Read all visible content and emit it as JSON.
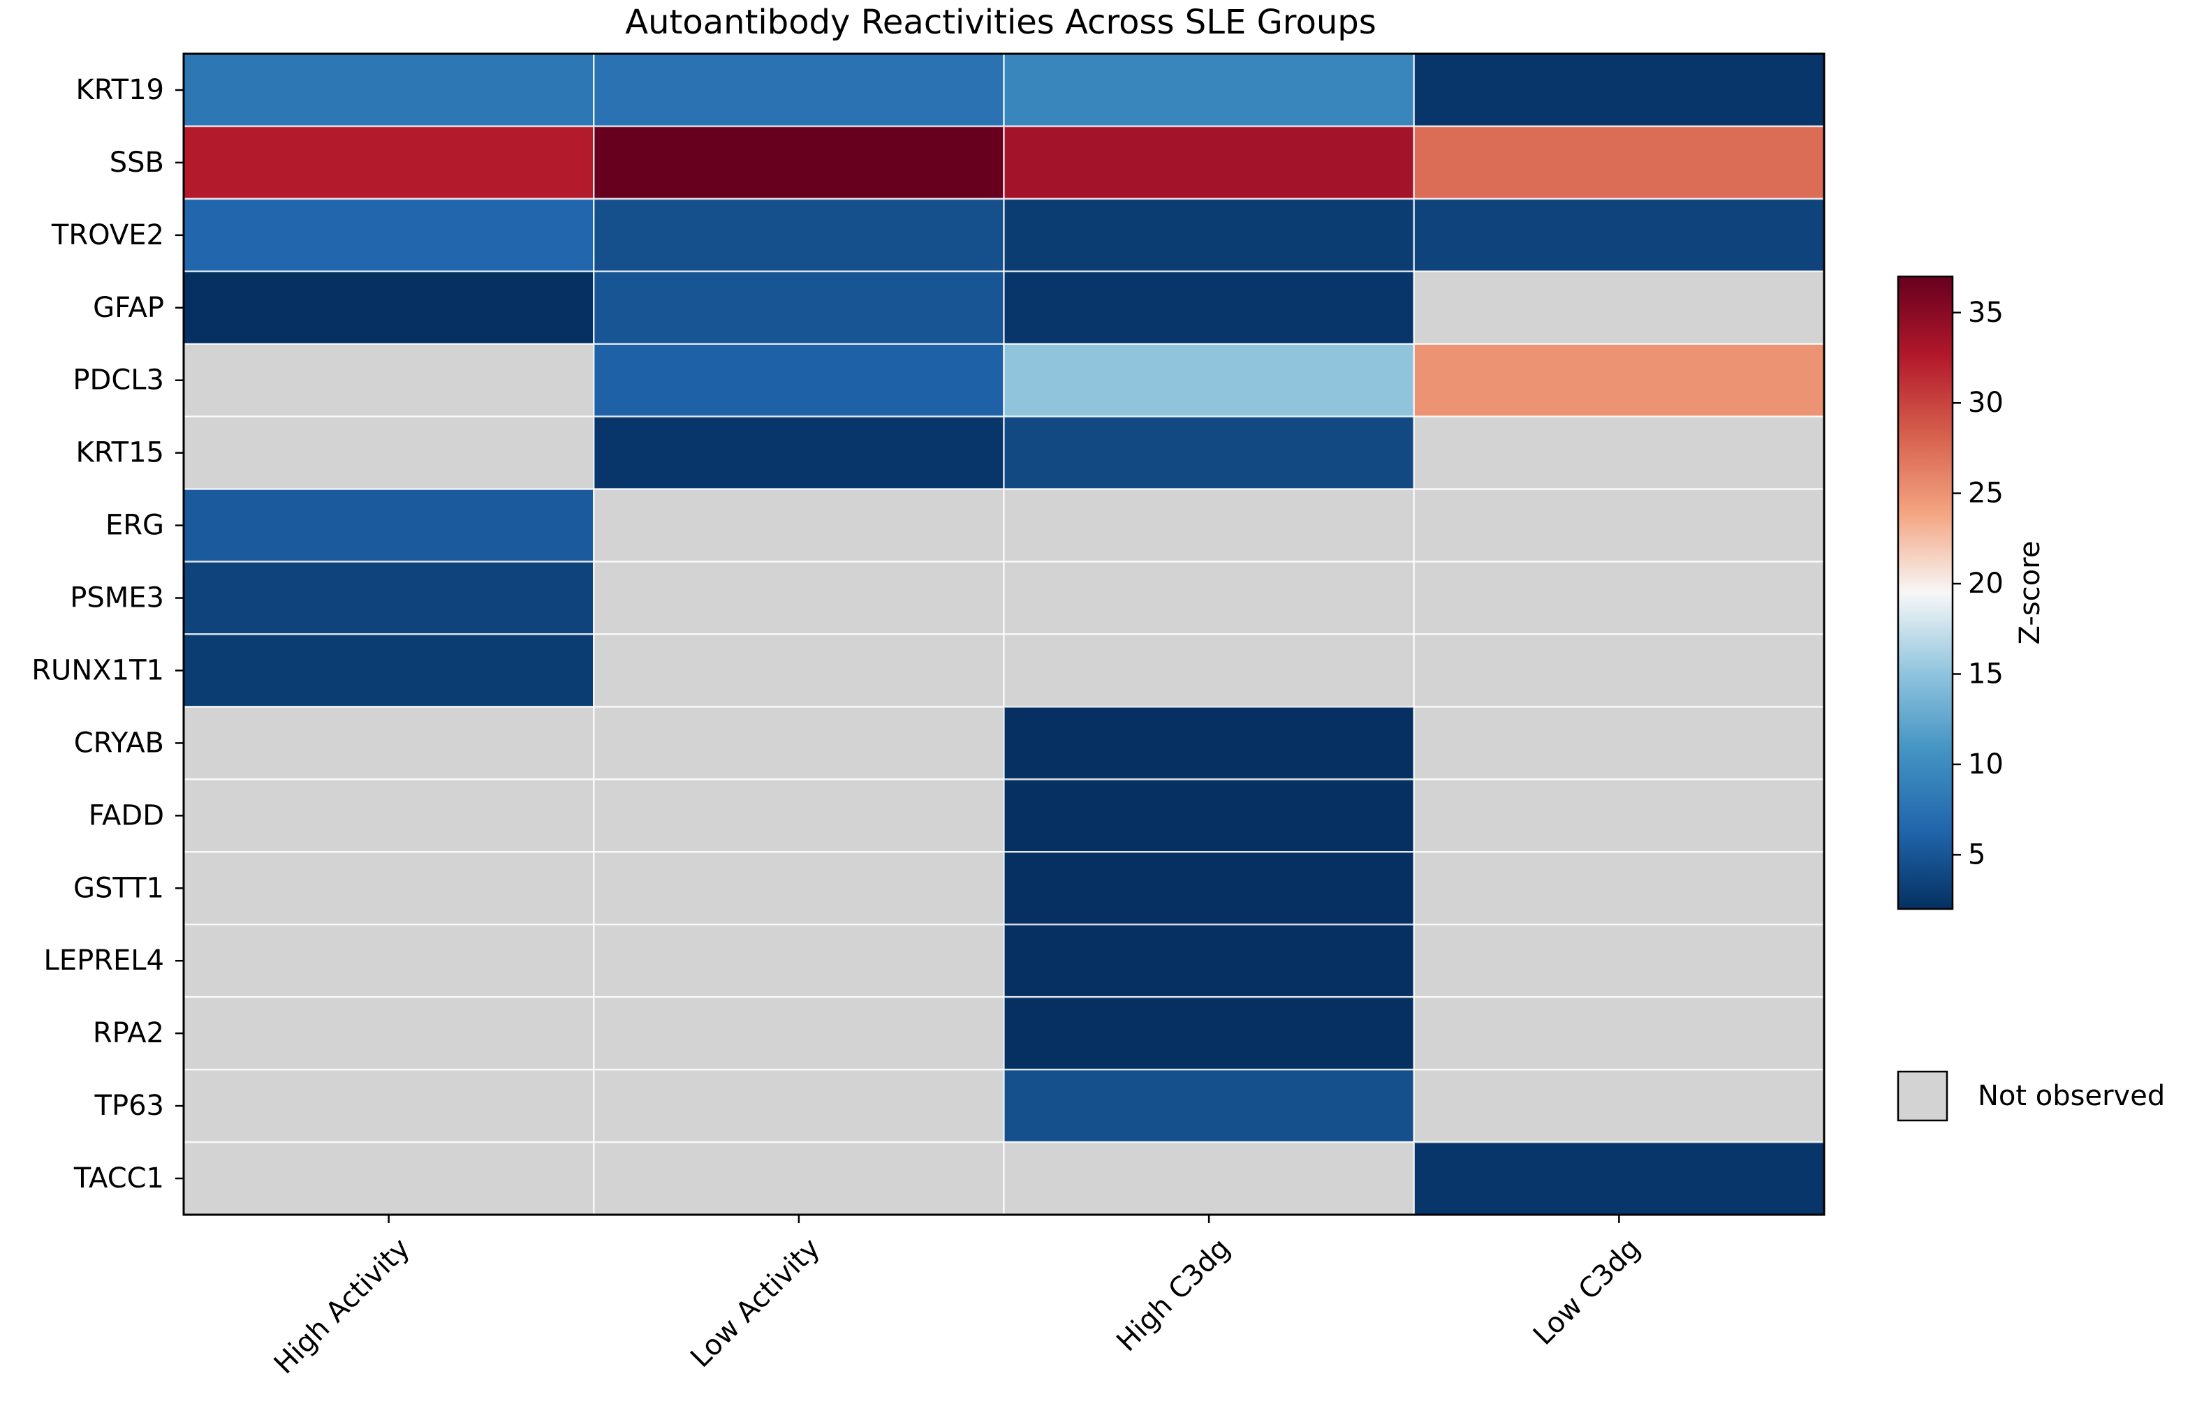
{
  "chart_data": {
    "type": "heatmap",
    "title": "Autoantibody Reactivities Across SLE Groups",
    "xlabel": "",
    "ylabel": "",
    "columns": [
      "High Activity",
      "Low Activity",
      "High C3dg",
      "Low C3dg"
    ],
    "rows": [
      "KRT19",
      "SSB",
      "TROVE2",
      "GFAP",
      "PDCL3",
      "KRT15",
      "ERG",
      "PSME3",
      "RUNX1T1",
      "CRYAB",
      "FADD",
      "GSTT1",
      "LEPREL4",
      "RPA2",
      "TP63",
      "TACC1"
    ],
    "values": [
      [
        8.0,
        7.5,
        9.5,
        2.5
      ],
      [
        32.5,
        37.0,
        33.5,
        27.5
      ],
      [
        6.5,
        4.5,
        3.0,
        3.5
      ],
      [
        2.0,
        5.0,
        2.5,
        null
      ],
      [
        null,
        6.0,
        15.0,
        25.0
      ],
      [
        null,
        2.5,
        4.0,
        null
      ],
      [
        5.5,
        null,
        null,
        null
      ],
      [
        3.5,
        null,
        null,
        null
      ],
      [
        3.0,
        null,
        null,
        null
      ],
      [
        null,
        null,
        2.0,
        null
      ],
      [
        null,
        null,
        2.0,
        null
      ],
      [
        null,
        null,
        2.0,
        null
      ],
      [
        null,
        null,
        2.0,
        null
      ],
      [
        null,
        null,
        2.0,
        null
      ],
      [
        null,
        null,
        4.5,
        null
      ],
      [
        null,
        null,
        null,
        2.5
      ]
    ],
    "missing_color": "#d3d3d3",
    "colormap": "RdBu_r",
    "colorbar": {
      "label": "Z-score",
      "min": 2.0,
      "max": 37.0,
      "ticks": [
        5,
        10,
        15,
        20,
        25,
        30,
        35
      ]
    },
    "legend": {
      "label": "Not observed",
      "position": "right"
    },
    "grid": false
  }
}
